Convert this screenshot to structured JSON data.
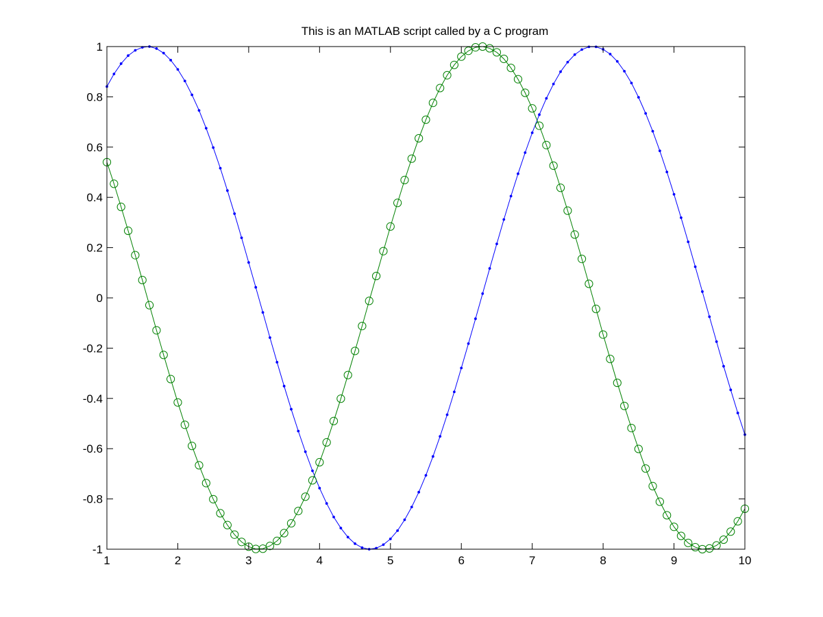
{
  "chart_data": {
    "type": "line",
    "title": "This is an MATLAB script called by a C program",
    "xlabel": "",
    "ylabel": "",
    "xlim": [
      1,
      10
    ],
    "ylim": [
      -1,
      1
    ],
    "x_ticks": [
      1,
      2,
      3,
      4,
      5,
      6,
      7,
      8,
      9,
      10
    ],
    "x_tick_labels": [
      "1",
      "2",
      "3",
      "4",
      "5",
      "6",
      "7",
      "8",
      "9",
      "10"
    ],
    "y_ticks": [
      -1,
      -0.8,
      -0.6,
      -0.4,
      -0.2,
      0,
      0.2,
      0.4,
      0.6,
      0.8,
      1
    ],
    "y_tick_labels": [
      "-1",
      "-0.8",
      "-0.6",
      "-0.4",
      "-0.2",
      "0",
      "0.2",
      "0.4",
      "0.6",
      "0.8",
      "1"
    ],
    "grid": false,
    "legend": "none",
    "x": [
      1.0,
      1.1,
      1.2,
      1.3,
      1.4,
      1.5,
      1.6,
      1.7,
      1.8,
      1.9,
      2.0,
      2.1,
      2.2,
      2.3,
      2.4,
      2.5,
      2.6,
      2.7,
      2.8,
      2.9,
      3.0,
      3.1,
      3.2,
      3.3,
      3.4,
      3.5,
      3.6,
      3.7,
      3.8,
      3.9,
      4.0,
      4.1,
      4.2,
      4.3,
      4.4,
      4.5,
      4.6,
      4.7,
      4.8,
      4.9,
      5.0,
      5.1,
      5.2,
      5.3,
      5.4,
      5.5,
      5.6,
      5.7,
      5.8,
      5.9,
      6.0,
      6.1,
      6.2,
      6.3,
      6.4,
      6.5,
      6.6,
      6.7,
      6.8,
      6.9,
      7.0,
      7.1,
      7.2,
      7.3,
      7.4,
      7.5,
      7.6,
      7.7,
      7.8,
      7.9,
      8.0,
      8.1,
      8.2,
      8.3,
      8.4,
      8.5,
      8.6,
      8.7,
      8.8,
      8.9,
      9.0,
      9.1,
      9.2,
      9.3,
      9.4,
      9.5,
      9.6,
      9.7,
      9.8,
      9.9,
      10.0
    ],
    "series": [
      {
        "color": "#0000ff",
        "marker": "dot",
        "values": [
          0.841,
          0.891,
          0.932,
          0.964,
          0.985,
          0.997,
          1.0,
          0.992,
          0.974,
          0.946,
          0.909,
          0.863,
          0.808,
          0.746,
          0.675,
          0.598,
          0.516,
          0.427,
          0.335,
          0.239,
          0.141,
          0.042,
          -0.058,
          -0.158,
          -0.256,
          -0.351,
          -0.443,
          -0.53,
          -0.612,
          -0.688,
          -0.757,
          -0.818,
          -0.872,
          -0.916,
          -0.952,
          -0.978,
          -0.994,
          -1.0,
          -0.996,
          -0.982,
          -0.959,
          -0.926,
          -0.883,
          -0.832,
          -0.773,
          -0.706,
          -0.631,
          -0.551,
          -0.465,
          -0.374,
          -0.279,
          -0.182,
          -0.083,
          0.017,
          0.117,
          0.215,
          0.312,
          0.405,
          0.494,
          0.578,
          0.657,
          0.729,
          0.794,
          0.851,
          0.9,
          0.938,
          0.968,
          0.988,
          0.999,
          0.999,
          0.989,
          0.97,
          0.941,
          0.902,
          0.855,
          0.798,
          0.734,
          0.663,
          0.585,
          0.501,
          0.412,
          0.319,
          0.223,
          0.124,
          0.025,
          -0.075,
          -0.174,
          -0.272,
          -0.366,
          -0.458,
          -0.544
        ]
      },
      {
        "color": "#008000",
        "marker": "circle",
        "values": [
          0.54,
          0.454,
          0.362,
          0.267,
          0.17,
          0.071,
          -0.029,
          -0.129,
          -0.227,
          -0.323,
          -0.416,
          -0.505,
          -0.589,
          -0.666,
          -0.737,
          -0.801,
          -0.857,
          -0.904,
          -0.942,
          -0.971,
          -0.99,
          -0.999,
          -0.998,
          -0.987,
          -0.967,
          -0.936,
          -0.897,
          -0.848,
          -0.791,
          -0.726,
          -0.654,
          -0.575,
          -0.49,
          -0.401,
          -0.307,
          -0.211,
          -0.112,
          -0.012,
          0.087,
          0.186,
          0.284,
          0.378,
          0.469,
          0.554,
          0.635,
          0.709,
          0.776,
          0.835,
          0.886,
          0.927,
          0.96,
          0.983,
          0.997,
          1.0,
          0.993,
          0.977,
          0.951,
          0.915,
          0.87,
          0.816,
          0.754,
          0.685,
          0.608,
          0.526,
          0.438,
          0.347,
          0.252,
          0.155,
          0.056,
          -0.044,
          -0.146,
          -0.243,
          -0.338,
          -0.43,
          -0.518,
          -0.601,
          -0.679,
          -0.749,
          -0.811,
          -0.865,
          -0.911,
          -0.947,
          -0.975,
          -0.992,
          -1.0,
          -0.997,
          -0.985,
          -0.962,
          -0.93,
          -0.889,
          -0.839
        ]
      }
    ]
  }
}
